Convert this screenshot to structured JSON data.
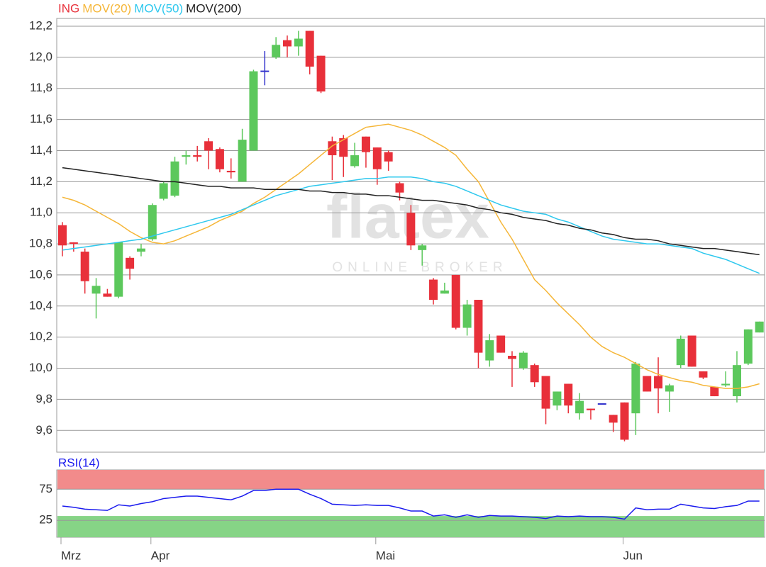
{
  "chart_data": [
    {
      "type": "candlestick",
      "watermark": {
        "logo": "flatex",
        "tagline": "ONLINE BROKER"
      },
      "categories": [
        "Mrz",
        null,
        null,
        null,
        null,
        null,
        null,
        null,
        "Apr",
        null,
        null,
        null,
        null,
        null,
        null,
        null,
        null,
        null,
        null,
        null,
        null,
        null,
        null,
        null,
        null,
        null,
        null,
        null,
        "Mai",
        null,
        null,
        null,
        null,
        null,
        null,
        null,
        null,
        null,
        null,
        null,
        null,
        null,
        null,
        null,
        null,
        null,
        null,
        null,
        null,
        null,
        "Jun",
        null,
        null,
        null,
        null,
        null,
        null,
        null,
        null,
        null,
        null,
        null,
        null
      ],
      "ylim": [
        9.46,
        12.25
      ],
      "yticks": [
        {
          "value": 12.2,
          "label": "12,2"
        },
        {
          "value": 12.0,
          "label": "12,0"
        },
        {
          "value": 11.8,
          "label": "11,8"
        },
        {
          "value": 11.6,
          "label": "11,6"
        },
        {
          "value": 11.4,
          "label": "11,4"
        },
        {
          "value": 11.2,
          "label": "11,2"
        },
        {
          "value": 11.0,
          "label": "11,0"
        },
        {
          "value": 10.8,
          "label": "10,8"
        },
        {
          "value": 10.6,
          "label": "10,6"
        },
        {
          "value": 10.4,
          "label": "10,4"
        },
        {
          "value": 10.2,
          "label": "10,2"
        },
        {
          "value": 10.0,
          "label": "10,0"
        },
        {
          "value": 9.8,
          "label": "9,8"
        },
        {
          "value": 9.6,
          "label": "9,6"
        }
      ],
      "grid": true,
      "series": [
        {
          "name": "ING",
          "color": "#e8303a",
          "up_color": "#5cc85c",
          "down_color": "#e8303a",
          "flat_color": "#3333cc",
          "open": [
            10.92,
            10.81,
            10.75,
            10.48,
            10.48,
            10.46,
            10.71,
            10.75,
            10.83,
            11.09,
            11.11,
            11.36,
            11.37,
            11.46,
            11.41,
            11.27,
            11.2,
            11.4,
            11.91,
            12.0,
            12.11,
            12.07,
            12.17,
            12.01,
            11.46,
            11.48,
            11.3,
            11.49,
            11.42,
            11.39,
            11.19,
            11.0,
            10.76,
            10.57,
            10.48,
            10.6,
            10.26,
            10.44,
            10.05,
            10.21,
            10.08,
            10.0,
            10.02,
            9.95,
            9.76,
            9.9,
            9.71,
            9.74,
            9.77,
            9.7,
            9.78,
            9.71,
            9.95,
            9.95,
            9.85,
            10.02,
            10.21,
            9.98,
            9.88,
            9.89,
            9.82,
            10.03,
            10.23
          ],
          "high": [
            10.94,
            10.81,
            10.77,
            10.58,
            10.51,
            10.81,
            10.72,
            10.8,
            11.06,
            11.2,
            11.36,
            11.4,
            11.43,
            11.48,
            11.42,
            11.35,
            11.54,
            11.92,
            12.04,
            12.13,
            12.14,
            12.17,
            12.17,
            12.01,
            11.49,
            11.5,
            11.45,
            11.49,
            11.42,
            11.4,
            11.2,
            11.05,
            10.8,
            10.58,
            10.55,
            10.6,
            10.44,
            10.44,
            10.22,
            10.21,
            10.11,
            10.11,
            10.03,
            9.95,
            9.85,
            9.9,
            9.84,
            9.74,
            9.77,
            9.7,
            9.78,
            10.04,
            9.95,
            10.07,
            9.9,
            10.21,
            10.21,
            9.98,
            9.88,
            9.98,
            10.11,
            10.25,
            10.3
          ],
          "low": [
            10.72,
            10.75,
            10.48,
            10.32,
            10.46,
            10.45,
            10.57,
            10.72,
            10.82,
            11.08,
            11.1,
            11.31,
            11.33,
            11.28,
            11.26,
            11.22,
            11.2,
            11.4,
            11.82,
            11.99,
            12.0,
            12.01,
            11.89,
            11.77,
            11.21,
            11.23,
            11.29,
            11.29,
            11.18,
            11.27,
            11.08,
            10.76,
            10.66,
            10.41,
            10.48,
            10.25,
            10.21,
            10.0,
            10.01,
            10.1,
            9.88,
            9.99,
            9.88,
            9.64,
            9.73,
            9.71,
            9.67,
            9.67,
            9.77,
            9.59,
            9.53,
            9.57,
            9.85,
            9.71,
            9.72,
            10.0,
            10.01,
            9.93,
            9.82,
            9.88,
            9.78,
            10.02,
            10.23
          ],
          "close": [
            10.79,
            10.8,
            10.56,
            10.53,
            10.46,
            10.81,
            10.64,
            10.77,
            11.05,
            11.19,
            11.33,
            11.37,
            11.36,
            11.4,
            11.28,
            11.26,
            11.47,
            11.91,
            11.91,
            12.08,
            12.07,
            12.12,
            11.94,
            11.78,
            11.37,
            11.36,
            11.37,
            11.39,
            11.28,
            11.33,
            11.13,
            10.79,
            10.79,
            10.44,
            10.5,
            10.26,
            10.41,
            10.1,
            10.18,
            10.1,
            10.06,
            10.1,
            9.91,
            9.74,
            9.85,
            9.76,
            9.79,
            9.73,
            9.77,
            9.65,
            9.54,
            10.03,
            9.85,
            9.87,
            9.89,
            10.19,
            10.01,
            9.94,
            9.82,
            9.9,
            10.02,
            10.25,
            10.3
          ]
        },
        {
          "name": "MOV(20)",
          "color": "#f5b638",
          "values": [
            11.1,
            11.08,
            11.05,
            11.01,
            10.97,
            10.93,
            10.88,
            10.84,
            10.81,
            10.8,
            10.82,
            10.85,
            10.88,
            10.91,
            10.95,
            10.98,
            11.01,
            11.06,
            11.1,
            11.15,
            11.2,
            11.25,
            11.31,
            11.37,
            11.43,
            11.47,
            11.51,
            11.55,
            11.56,
            11.57,
            11.55,
            11.53,
            11.5,
            11.46,
            11.42,
            11.37,
            11.28,
            11.2,
            11.07,
            10.94,
            10.83,
            10.7,
            10.57,
            10.5,
            10.42,
            10.35,
            10.28,
            10.2,
            10.14,
            10.1,
            10.07,
            10.03,
            9.99,
            9.96,
            9.94,
            9.92,
            9.91,
            9.89,
            9.88,
            9.87,
            9.87,
            9.88,
            9.9
          ]
        },
        {
          "name": "MOV(50)",
          "color": "#2ec8ee",
          "values": [
            10.76,
            10.77,
            10.78,
            10.79,
            10.8,
            10.81,
            10.82,
            10.83,
            10.85,
            10.87,
            10.89,
            10.91,
            10.93,
            10.95,
            10.97,
            10.99,
            11.02,
            11.05,
            11.08,
            11.11,
            11.13,
            11.15,
            11.17,
            11.18,
            11.19,
            11.2,
            11.21,
            11.22,
            11.22,
            11.23,
            11.23,
            11.23,
            11.22,
            11.2,
            11.19,
            11.17,
            11.14,
            11.11,
            11.08,
            11.05,
            11.03,
            11.01,
            11.0,
            10.99,
            10.96,
            10.94,
            10.91,
            10.88,
            10.85,
            10.83,
            10.82,
            10.81,
            10.8,
            10.8,
            10.79,
            10.78,
            10.77,
            10.74,
            10.72,
            10.7,
            10.67,
            10.64,
            10.61
          ]
        },
        {
          "name": "MOV(200)",
          "color": "#222222",
          "values": [
            11.29,
            11.28,
            11.27,
            11.26,
            11.25,
            11.24,
            11.23,
            11.22,
            11.21,
            11.2,
            11.2,
            11.19,
            11.18,
            11.17,
            11.17,
            11.16,
            11.16,
            11.16,
            11.15,
            11.15,
            11.15,
            11.15,
            11.14,
            11.14,
            11.13,
            11.13,
            11.12,
            11.12,
            11.11,
            11.11,
            11.1,
            11.09,
            11.08,
            11.08,
            11.07,
            11.06,
            11.05,
            11.03,
            11.02,
            11.0,
            10.99,
            10.97,
            10.96,
            10.95,
            10.93,
            10.92,
            10.9,
            10.89,
            10.87,
            10.86,
            10.84,
            10.83,
            10.83,
            10.82,
            10.8,
            10.79,
            10.78,
            10.77,
            10.77,
            10.76,
            10.75,
            10.74,
            10.73
          ]
        }
      ]
    },
    {
      "type": "line",
      "title": "RSI(14)",
      "color": "#1a1aee",
      "ylim": [
        -2,
        106
      ],
      "yticks": [
        75,
        25
      ],
      "grid": true,
      "zones": [
        {
          "from": 75,
          "to": 106,
          "color": "#f28b8b"
        },
        {
          "from": -2,
          "to": 32,
          "color": "#86d486"
        }
      ],
      "values": [
        48,
        46,
        43,
        42,
        41,
        50,
        48,
        52,
        55,
        60,
        62,
        64,
        64,
        62,
        60,
        58,
        64,
        73,
        73,
        75,
        75,
        75,
        67,
        60,
        51,
        50,
        49,
        50,
        49,
        49,
        45,
        40,
        40,
        32,
        34,
        30,
        34,
        30,
        33,
        32,
        32,
        31,
        30,
        28,
        32,
        31,
        32,
        31,
        31,
        30,
        27,
        45,
        42,
        43,
        43,
        51,
        48,
        45,
        44,
        47,
        49,
        56,
        56
      ]
    }
  ]
}
